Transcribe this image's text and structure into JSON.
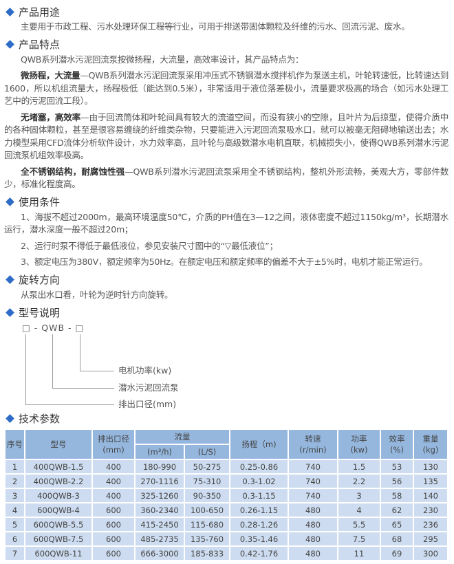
{
  "colors": {
    "accent": "#2f6cc8",
    "table_header": "#95b7de",
    "table_row": "#cddcf0"
  },
  "sections": {
    "usage": {
      "title": "产品用途",
      "text": "主要用于市政工程、污水处理环保工程等行业，可用于排送带固体颗粒及纤维的污水、回流污泥、废水。"
    },
    "features": {
      "title": "产品特点",
      "intro": "QWB系列潜水污泥回流泵按微扬程，大流量，高效率设计，其产品特点为：",
      "items": [
        {
          "bold": "微扬程，大流量",
          "text": "—QWB系列潜水污泥回流泵采用冲压式不锈钢潜水搅拌机作为泵送主机，叶轮转速低，比转速达到1600，所以机组流量大，扬程极低（能达到0.5米），非常适用于液位落差极小，流量要求极高的场合（如污水处理工艺中的污泥回流工段）。"
        },
        {
          "bold": "无堵塞，高效率",
          "text": "—由于回流筒体和叶轮间具有较大的流道空间，而没有狭小的空隙，且叶片为后掠型，使得介质中的各种固体颗粒，甚至是很容易缠绕的纤维类杂物，只要能进入污泥回流泵吸水口，就可以被毫无阻碍地输送出去；水力模型采用CFD流体分析软件设计，水力效率高，且叶轮与高级数潜水电机直联，机械损失小，使得QWB系列潜水污泥回流泵机组效率极高。"
        },
        {
          "bold": "全不锈钢结构，耐腐蚀性强",
          "text": "—QWB系列潜水污泥回流泵采用全不锈钢结构，整机外形流畅，美观大方，零部件数少，标准化程度高。"
        }
      ]
    },
    "conditions": {
      "title": "使用条件",
      "items": [
        "1、海拔不超过2000m，最高环境温度50℃，介质的PH值在3—12之间，液体密度不超过1150kg/m³，长期潜水运行，潜水深度一般不超过20m；",
        "2、运行时泵不得低于最低液位，参见安装尺寸图中的“▽最低液位”；",
        "3、额定电压为380V，额定频率为50Hz。在额定电压和额定频率的偏差不大于±5%时，电机才能正常运行。"
      ]
    },
    "rotation": {
      "title": "旋转方向",
      "text": "从泵出水口看，叶轮为逆时针方向旋转。"
    },
    "model": {
      "title": "型号说明",
      "code": "□ - QWB - □",
      "labels": [
        "电机功率(kw)",
        "潜水污泥回流泵",
        "排出口径(mm)"
      ]
    },
    "specs": {
      "title": "技术参数"
    }
  },
  "table": {
    "headers": {
      "no": "序号",
      "model": "型号",
      "outlet": "排出口径",
      "outlet_unit": "(mm)",
      "flow": "流量",
      "flow_m3": "(m³/h)",
      "flow_ls": "(L/S)",
      "head": "扬程（m)",
      "speed": "转速",
      "speed_unit": "(r/min)",
      "power": "功率",
      "power_unit": "(kw)",
      "eff": "效率",
      "eff_unit": "(%)",
      "weight": "重量",
      "weight_unit": "(kg)"
    },
    "rows": [
      [
        "1",
        "400QWB-1.5",
        "400",
        "180-990",
        "50-275",
        "0.25-0.86",
        "740",
        "1.5",
        "53",
        "130"
      ],
      [
        "2",
        "400QWB-2.2",
        "400",
        "270-1116",
        "75-310",
        "0.3-1.02",
        "740",
        "2.2",
        "56",
        "135"
      ],
      [
        "3",
        "400QWB-3",
        "400",
        "325-1260",
        "90-350",
        "0.3-1.15",
        "740",
        "3",
        "58",
        "140"
      ],
      [
        "4",
        "600QWB-4",
        "600",
        "360-2340",
        "100-650",
        "0.26-1.15",
        "480",
        "4",
        "62",
        "230"
      ],
      [
        "5",
        "600QWB-5.5",
        "600",
        "415-2450",
        "115-680",
        "0.28-1.26",
        "480",
        "5.5",
        "65",
        "236"
      ],
      [
        "6",
        "600QWB-7.5",
        "600",
        "485-2735",
        "135-760",
        "0.35-1.46",
        "480",
        "7.5",
        "68",
        "295"
      ],
      [
        "7",
        "600QWB-11",
        "600",
        "666-3000",
        "185-833",
        "0.42-1.76",
        "480",
        "11",
        "69",
        "300"
      ]
    ]
  }
}
